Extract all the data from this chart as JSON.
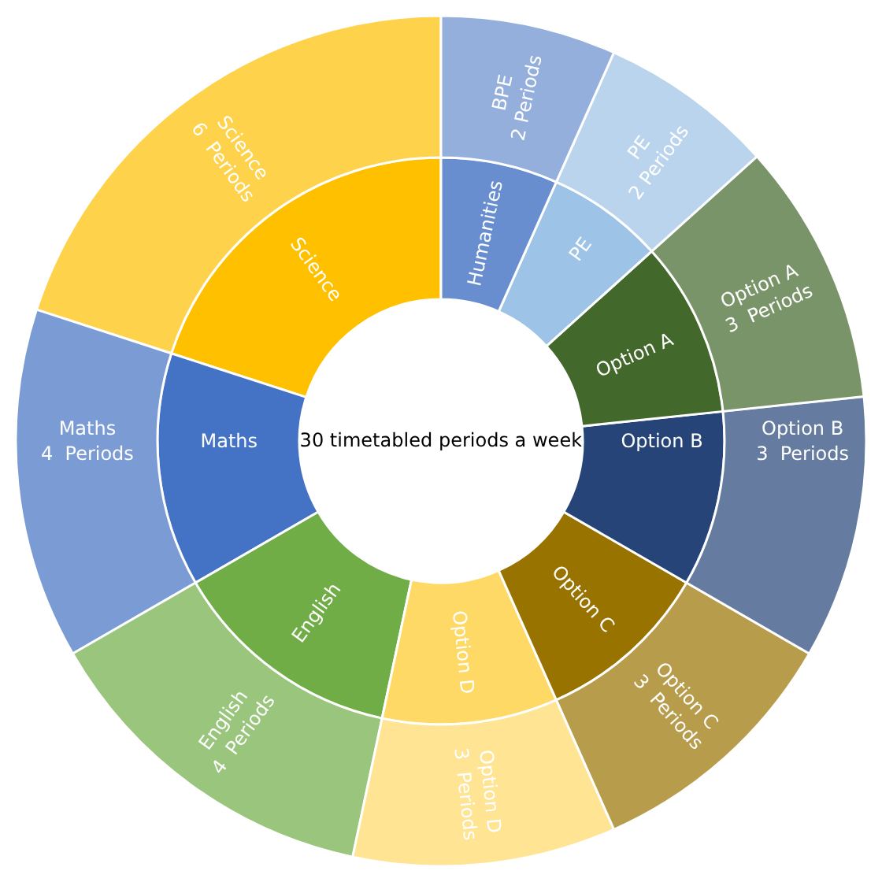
{
  "chart_data": {
    "type": "other",
    "title": "30 timetabled periods a week",
    "categories": [
      "Science",
      "Maths",
      "English",
      "Option D",
      "Option C",
      "Option B",
      "Option A",
      "PE",
      "Humanities"
    ],
    "values": [
      6,
      4,
      4,
      3,
      3,
      3,
      3,
      2,
      2
    ],
    "value_labels": [
      "Science\n6  Periods",
      "Maths\n4  Periods",
      "English\n4  Periods",
      "Option D\n3  Periods",
      "Option C\n3  Periods",
      "Option B\n3  Periods",
      "Option A\n3  Periods",
      "PE\n2 Periods",
      "BPE\n2 Periods"
    ],
    "colors": [
      "#ffc000",
      "#4472c4",
      "#70ad47",
      "#ffd966",
      "#997300",
      "#264478",
      "#43682b",
      "#9dc3e6",
      "#698ed0"
    ]
  }
}
